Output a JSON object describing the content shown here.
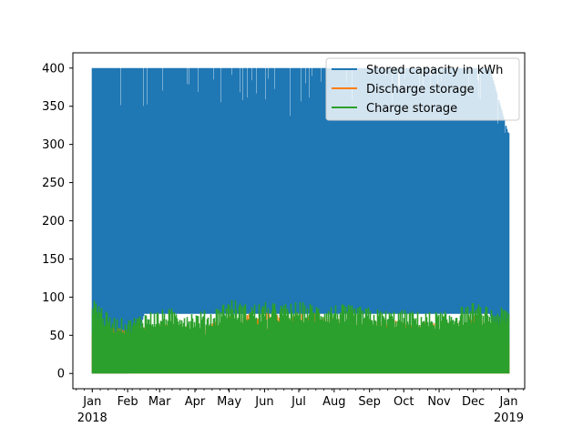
{
  "chart_data": {
    "type": "area",
    "title": "",
    "xlabel": "",
    "ylabel": "",
    "ylim": [
      -20,
      420
    ],
    "y_ticks": [
      0,
      50,
      100,
      150,
      200,
      250,
      300,
      350,
      400
    ],
    "xlim": [
      "2017-12-15",
      "2019-01-15"
    ],
    "x_ticks": [
      {
        "date": "2018-01-01",
        "label": "Jan",
        "year": "2018"
      },
      {
        "date": "2018-02-01",
        "label": "Feb",
        "year": ""
      },
      {
        "date": "2018-03-01",
        "label": "Mar",
        "year": ""
      },
      {
        "date": "2018-04-01",
        "label": "Apr",
        "year": ""
      },
      {
        "date": "2018-05-01",
        "label": "May",
        "year": ""
      },
      {
        "date": "2018-06-01",
        "label": "Jun",
        "year": ""
      },
      {
        "date": "2018-07-01",
        "label": "Jul",
        "year": ""
      },
      {
        "date": "2018-08-01",
        "label": "Aug",
        "year": ""
      },
      {
        "date": "2018-09-01",
        "label": "Sep",
        "year": ""
      },
      {
        "date": "2018-10-01",
        "label": "Oct",
        "year": ""
      },
      {
        "date": "2018-11-01",
        "label": "Nov",
        "year": ""
      },
      {
        "date": "2018-12-01",
        "label": "Dec",
        "year": ""
      },
      {
        "date": "2019-01-01",
        "label": "Jan",
        "year": "2019"
      }
    ],
    "legend": {
      "position": "top-right"
    },
    "series": [
      {
        "name": "Stored capacity in kWh",
        "color": "#1f77b4",
        "x": [
          "2018-01-01",
          "2018-01-15",
          "2018-02-01",
          "2018-02-15",
          "2018-03-01",
          "2018-03-15",
          "2018-04-01",
          "2018-04-15",
          "2018-05-01",
          "2018-05-15",
          "2018-06-01",
          "2018-06-15",
          "2018-07-01",
          "2018-07-15",
          "2018-08-01",
          "2018-08-15",
          "2018-09-01",
          "2018-09-15",
          "2018-10-01",
          "2018-10-15",
          "2018-11-01",
          "2018-11-15",
          "2018-12-01",
          "2018-12-15",
          "2018-12-31"
        ],
        "min": [
          0,
          0,
          0,
          78,
          78,
          78,
          78,
          78,
          78,
          78,
          78,
          78,
          78,
          78,
          78,
          78,
          78,
          78,
          78,
          78,
          78,
          78,
          78,
          78,
          0
        ],
        "max": [
          400,
          400,
          400,
          400,
          400,
          400,
          400,
          400,
          400,
          400,
          400,
          400,
          400,
          400,
          400,
          400,
          400,
          400,
          400,
          400,
          400,
          400,
          400,
          400,
          315
        ]
      },
      {
        "name": "Discharge storage",
        "color": "#ff7f0e",
        "x": [
          "2018-01-01",
          "2018-02-01",
          "2018-03-01",
          "2018-04-01",
          "2018-05-01",
          "2018-06-01",
          "2018-07-01",
          "2018-08-01",
          "2018-09-01",
          "2018-10-01",
          "2018-11-01",
          "2018-12-01",
          "2018-12-31"
        ],
        "max": [
          70,
          55,
          65,
          60,
          75,
          78,
          78,
          76,
          70,
          68,
          65,
          75,
          55
        ]
      },
      {
        "name": "Charge storage",
        "color": "#2ca02c",
        "x": [
          "2018-01-01",
          "2018-01-15",
          "2018-02-01",
          "2018-02-15",
          "2018-03-01",
          "2018-03-15",
          "2018-04-01",
          "2018-04-15",
          "2018-05-01",
          "2018-05-15",
          "2018-06-01",
          "2018-06-15",
          "2018-07-01",
          "2018-07-15",
          "2018-08-01",
          "2018-08-15",
          "2018-09-01",
          "2018-09-15",
          "2018-10-01",
          "2018-10-15",
          "2018-11-01",
          "2018-11-15",
          "2018-12-01",
          "2018-12-15",
          "2018-12-31"
        ],
        "min": [
          0,
          0,
          0,
          0,
          0,
          0,
          0,
          0,
          0,
          0,
          0,
          0,
          0,
          0,
          0,
          0,
          0,
          0,
          0,
          0,
          0,
          0,
          0,
          0,
          0
        ],
        "max": [
          105,
          75,
          70,
          80,
          82,
          85,
          80,
          82,
          98,
          90,
          92,
          90,
          93,
          90,
          90,
          88,
          85,
          82,
          82,
          80,
          80,
          84,
          92,
          85,
          85
        ]
      }
    ]
  }
}
